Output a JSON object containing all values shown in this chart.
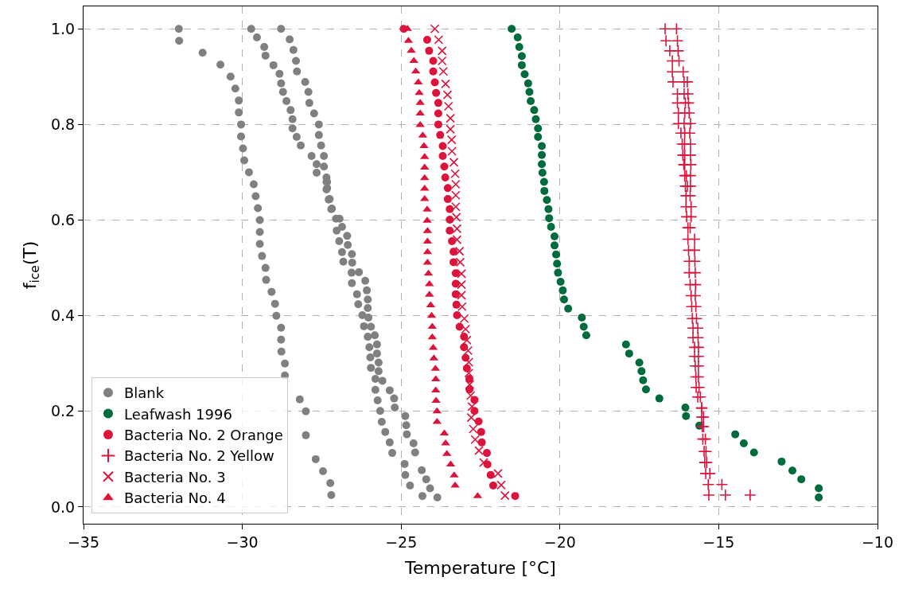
{
  "chart_data": {
    "type": "scatter",
    "xlabel": "Temperature [°C]",
    "ylabel": "f$_{ice}$(T)",
    "xlim": [
      -35,
      -10
    ],
    "ylim": [
      -0.035,
      1.047
    ],
    "xticks": [
      {
        "value": -35,
        "label": "−35"
      },
      {
        "value": -30,
        "label": "−30"
      },
      {
        "value": -25,
        "label": "−25"
      },
      {
        "value": -20,
        "label": "−20"
      },
      {
        "value": -15,
        "label": "−15"
      },
      {
        "value": -10,
        "label": "−10"
      }
    ],
    "yticks": [
      {
        "value": 0,
        "label": "0.0"
      },
      {
        "value": 0.2,
        "label": "0.2"
      },
      {
        "value": 0.4,
        "label": "0.4"
      },
      {
        "value": 0.6,
        "label": "0.6"
      },
      {
        "value": 0.8,
        "label": "0.8"
      },
      {
        "value": 1,
        "label": "1.0"
      }
    ],
    "grid": true,
    "legend": "bottom left",
    "series": [
      {
        "name": "Blank",
        "color": "#808080",
        "marker": "circle",
        "x": [
          -32.0,
          -31.99,
          -31.25,
          -30.69,
          -30.37,
          -30.22,
          -30.11,
          -30.11,
          -30.04,
          -30.04,
          -29.98,
          -29.94,
          -29.79,
          -29.64,
          -29.58,
          -29.51,
          -29.45,
          -29.45,
          -29.45,
          -29.38,
          -29.27,
          -29.25,
          -29.08,
          -28.97,
          -28.93,
          -28.78,
          -28.78,
          -28.77,
          -28.66,
          -28.66,
          -28.65,
          -28.19,
          -28.0,
          -28.0,
          -27.69,
          -27.46,
          -27.23,
          -27.2,
          -29.72,
          -29.54,
          -29.31,
          -29.27,
          -29.02,
          -28.83,
          -28.78,
          -28.72,
          -28.61,
          -28.48,
          -28.42,
          -28.42,
          -28.29,
          -28.16,
          -27.82,
          -27.66,
          -27.66,
          -27.35,
          -27.35,
          -27.28,
          -27.2,
          -27.05,
          -27.03,
          -26.95,
          -26.86,
          -26.82,
          -26.56,
          -26.55,
          -26.39,
          -26.35,
          -26.22,
          -26.17,
          -26.05,
          -26.0,
          -25.97,
          -25.95,
          -25.81,
          -25.81,
          -25.74,
          -25.66,
          -25.61,
          -25.5,
          -25.36,
          -25.28,
          -28.78,
          -28.51,
          -28.39,
          -28.31,
          -28.28,
          -28.02,
          -27.92,
          -27.89,
          -27.74,
          -27.59,
          -27.59,
          -27.52,
          -27.43,
          -27.43,
          -27.35,
          -27.33,
          -27.33,
          -27.25,
          -27.18,
          -26.94,
          -26.86,
          -26.7,
          -26.68,
          -26.55,
          -26.54,
          -26.33,
          -26.13,
          -26.08,
          -26.05,
          -26.05,
          -26.03,
          -25.95,
          -25.83,
          -25.76,
          -25.76,
          -25.71,
          -25.71,
          -25.59,
          -25.36,
          -25.22,
          -25.2,
          -24.87,
          -24.84,
          -24.82,
          -24.61,
          -24.56,
          -24.89,
          -24.87,
          -24.72,
          -24.35,
          -24.21,
          -24.09,
          -24.33,
          -23.86
        ],
        "values": [
          1.0,
          0.975,
          0.95,
          0.925,
          0.9,
          0.875,
          0.85,
          0.825,
          0.8,
          0.775,
          0.75,
          0.725,
          0.7,
          0.675,
          0.65,
          0.625,
          0.6,
          0.575,
          0.55,
          0.525,
          0.5,
          0.475,
          0.45,
          0.425,
          0.4,
          0.375,
          0.35,
          0.325,
          0.3,
          0.275,
          null,
          0.225,
          0.2,
          0.15,
          0.1,
          0.075,
          0.05,
          0.025,
          1.0,
          0.982,
          0.962,
          0.944,
          0.924,
          0.906,
          0.886,
          0.868,
          0.849,
          0.83,
          0.811,
          0.792,
          0.774,
          0.756,
          0.734,
          0.717,
          0.699,
          0.68,
          0.664,
          0.643,
          0.623,
          0.603,
          0.578,
          0.556,
          0.533,
          0.513,
          0.49,
          0.468,
          0.445,
          0.424,
          0.401,
          0.378,
          0.356,
          0.334,
          0.313,
          0.291,
          0.268,
          0.245,
          0.223,
          0.201,
          0.178,
          0.157,
          0.135,
          0.113,
          1.0,
          0.978,
          0.956,
          0.933,
          0.911,
          0.889,
          0.868,
          0.845,
          0.823,
          0.8,
          0.778,
          0.756,
          0.734,
          0.712,
          0.689,
          0.68,
          0.667,
          0.644,
          0.624,
          0.603,
          0.586,
          0.567,
          0.548,
          0.529,
          0.511,
          0.491,
          0.473,
          0.453,
          0.434,
          0.416,
          0.396,
          0.377,
          0.359,
          0.34,
          0.321,
          0.302,
          0.284,
          0.264,
          0.244,
          0.227,
          0.208,
          0.19,
          0.171,
          0.152,
          0.133,
          0.114,
          0.09,
          0.067,
          0.045,
          0.077,
          0.058,
          0.039,
          0.023,
          0.02
        ]
      },
      {
        "name": "Leafwash 1996",
        "color": "#006b3c",
        "marker": "circle",
        "x": [
          -21.52,
          -21.33,
          -21.28,
          -21.2,
          -21.2,
          -21.11,
          -21.0,
          -20.96,
          -20.92,
          -20.81,
          -20.76,
          -20.69,
          -20.69,
          -20.57,
          -20.57,
          -20.57,
          -20.55,
          -20.5,
          -20.49,
          -20.41,
          -20.36,
          -20.34,
          -20.28,
          -20.17,
          -20.17,
          -20.12,
          -20.09,
          -20.06,
          -19.98,
          -19.91,
          -19.87,
          -19.74,
          -19.31,
          -19.25,
          -19.17,
          -17.92,
          -17.82,
          -17.5,
          -17.43,
          -17.38,
          -17.29,
          -16.87,
          -16.05,
          -16.03,
          -15.61,
          -14.48,
          -14.21,
          -13.89,
          -13.02,
          -12.68,
          -12.4,
          -11.85,
          -11.85
        ],
        "values": [
          1.0,
          0.982,
          0.962,
          0.943,
          0.924,
          0.905,
          0.886,
          0.868,
          0.849,
          0.83,
          0.811,
          0.792,
          0.774,
          0.755,
          0.736,
          0.717,
          0.699,
          0.68,
          0.661,
          0.642,
          0.623,
          0.604,
          0.586,
          0.566,
          0.547,
          0.528,
          0.509,
          0.49,
          0.471,
          0.453,
          0.434,
          0.415,
          0.396,
          0.377,
          0.359,
          0.34,
          0.321,
          0.302,
          0.284,
          0.265,
          0.246,
          0.227,
          0.208,
          0.19,
          0.17,
          0.152,
          0.133,
          0.114,
          0.095,
          0.076,
          0.058,
          0.039,
          0.02
        ]
      },
      {
        "name": "Bacteria No. 2 Orange",
        "color": "#dc143c",
        "marker": "circle",
        "x": [
          -24.92,
          -24.18,
          -24.12,
          -23.99,
          -23.99,
          -23.94,
          -23.9,
          -23.83,
          -23.83,
          -23.83,
          -23.77,
          -23.69,
          -23.69,
          -23.64,
          -23.61,
          -23.53,
          -23.53,
          -23.47,
          -23.47,
          -23.47,
          -23.4,
          -23.35,
          -23.35,
          -23.28,
          -23.28,
          -23.28,
          -23.26,
          -23.24,
          -23.16,
          -23.02,
          -23.02,
          -22.97,
          -22.93,
          -22.85,
          -22.85,
          -22.69,
          -22.69,
          -22.56,
          -22.48,
          -22.46,
          -22.3,
          -22.28,
          -22.18,
          -22.1,
          -21.41
        ],
        "values": [
          1.0,
          0.977,
          0.954,
          0.933,
          0.911,
          0.888,
          0.866,
          0.845,
          0.823,
          0.8,
          0.778,
          0.755,
          0.734,
          0.712,
          0.689,
          0.667,
          0.644,
          0.623,
          0.601,
          0.578,
          0.556,
          0.534,
          0.512,
          0.489,
          0.467,
          0.445,
          0.423,
          0.401,
          0.377,
          0.356,
          0.334,
          0.312,
          0.29,
          0.268,
          0.246,
          0.224,
          0.201,
          0.179,
          0.157,
          0.135,
          0.113,
          0.089,
          0.067,
          0.045,
          0.023
        ]
      },
      {
        "name": "Bacteria No. 2 Yellow",
        "color": "#dc143c",
        "marker": "cross",
        "x": [
          -16.69,
          -16.33,
          -16.66,
          -16.3,
          -16.54,
          -16.28,
          -16.46,
          -16.25,
          -16.46,
          -16.12,
          -16.44,
          -16.09,
          -15.99,
          -16.3,
          -16.09,
          -15.97,
          -16.3,
          -16.05,
          -15.95,
          -16.27,
          -16.07,
          -15.93,
          -16.27,
          -16.09,
          -15.89,
          -16.19,
          -16.07,
          -15.91,
          -16.15,
          -16.08,
          -15.89,
          -16.13,
          -16.07,
          -15.89,
          -16.1,
          -16.07,
          -15.88,
          -16.07,
          -16.02,
          -15.89,
          -16.05,
          -15.99,
          -15.89,
          -16.03,
          -15.9,
          -16.03,
          -15.87,
          -16.01,
          -15.87,
          -15.97,
          -15.9,
          -15.97,
          -15.76,
          -15.95,
          -15.76,
          -15.93,
          -15.75,
          -15.93,
          -15.74,
          -15.9,
          -15.73,
          -15.87,
          -15.74,
          -15.85,
          -15.72,
          -15.83,
          -15.7,
          -15.81,
          -15.66,
          -15.81,
          -15.65,
          -15.76,
          -15.64,
          -15.76,
          -15.64,
          -15.74,
          -15.64,
          -15.72,
          -15.64,
          -15.71,
          -15.62,
          -15.66,
          -15.58,
          -15.54,
          -15.54,
          -15.54,
          -15.48,
          -15.52,
          -15.48,
          -15.5,
          -15.42,
          -15.46,
          -15.4,
          -15.44,
          -15.38,
          -15.41,
          -15.28,
          -15.33,
          -14.9,
          -15.31,
          -14.79,
          -14.01
        ],
        "values": [
          1.0,
          1.0,
          0.975,
          0.975,
          0.954,
          0.954,
          0.933,
          0.933,
          0.91,
          0.91,
          0.889,
          0.889,
          0.889,
          0.864,
          0.864,
          0.864,
          0.845,
          0.845,
          0.845,
          0.824,
          0.824,
          0.824,
          0.802,
          0.802,
          0.802,
          0.782,
          0.782,
          0.782,
          0.759,
          0.759,
          0.759,
          0.736,
          0.736,
          0.736,
          0.716,
          0.716,
          0.716,
          0.693,
          0.693,
          0.693,
          0.671,
          0.671,
          0.671,
          0.651,
          0.651,
          0.628,
          0.628,
          0.607,
          0.607,
          0.584,
          0.584,
          0.56,
          0.56,
          0.537,
          0.537,
          0.514,
          0.514,
          0.49,
          0.49,
          0.465,
          0.465,
          0.442,
          0.442,
          0.419,
          0.419,
          0.394,
          0.394,
          0.374,
          0.374,
          0.354,
          0.354,
          0.334,
          0.334,
          0.315,
          0.315,
          0.295,
          0.295,
          0.272,
          0.272,
          0.25,
          0.25,
          0.23,
          0.23,
          0.207,
          0.207,
          0.188,
          0.188,
          0.168,
          0.168,
          0.142,
          0.142,
          0.116,
          0.116,
          0.093,
          0.093,
          0.07,
          0.07,
          0.047,
          0.047,
          0.025,
          0.025,
          0.025
        ]
      },
      {
        "name": "Bacteria No. 3",
        "color": "#dc143c",
        "marker": "x",
        "x": [
          -23.94,
          -23.82,
          -23.71,
          -23.71,
          -23.67,
          -23.6,
          -23.54,
          -23.51,
          -23.45,
          -23.45,
          -23.41,
          -23.4,
          -23.34,
          -23.3,
          -23.28,
          -23.28,
          -23.28,
          -23.26,
          -23.24,
          -23.24,
          -23.16,
          -23.14,
          -23.1,
          -23.1,
          -23.1,
          -23.08,
          -23.01,
          -22.97,
          -22.93,
          -22.89,
          -22.87,
          -22.87,
          -22.84,
          -22.81,
          -22.77,
          -22.79,
          -22.73,
          -22.67,
          -22.55,
          -22.4,
          -21.95,
          -21.85,
          -21.73
        ],
        "values": [
          1.0,
          0.977,
          0.954,
          0.933,
          0.911,
          0.885,
          0.862,
          0.838,
          0.813,
          0.79,
          0.768,
          0.744,
          0.721,
          0.697,
          0.675,
          0.652,
          0.628,
          0.606,
          0.582,
          0.559,
          0.535,
          0.512,
          0.488,
          0.465,
          0.443,
          0.419,
          0.394,
          0.372,
          0.349,
          0.327,
          0.303,
          0.28,
          0.256,
          0.233,
          0.21,
          0.187,
          0.163,
          0.141,
          0.118,
          0.093,
          0.07,
          0.046,
          0.024
        ]
      },
      {
        "name": "Bacteria No. 4",
        "color": "#dc143c",
        "marker": "triangle",
        "x": [
          -24.8,
          -24.77,
          -24.68,
          -24.6,
          -24.54,
          -24.46,
          -24.43,
          -24.4,
          -24.4,
          -24.4,
          -24.32,
          -24.28,
          -24.26,
          -24.26,
          -24.26,
          -24.26,
          -24.26,
          -24.18,
          -24.18,
          -24.17,
          -24.17,
          -24.17,
          -24.17,
          -24.14,
          -24.11,
          -24.11,
          -24.07,
          -24.04,
          -24.02,
          -24.02,
          -23.99,
          -23.97,
          -23.92,
          -23.91,
          -23.91,
          -23.9,
          -23.87,
          -23.87,
          -23.64,
          -23.6,
          -23.56,
          -23.44,
          -23.33,
          -23.3,
          -22.59
        ],
        "values": [
          1.0,
          0.975,
          0.954,
          0.933,
          0.911,
          0.888,
          0.866,
          0.845,
          0.823,
          0.799,
          0.777,
          0.755,
          0.732,
          0.71,
          0.688,
          0.666,
          0.644,
          0.622,
          0.599,
          0.577,
          0.555,
          0.533,
          0.511,
          0.488,
          0.466,
          0.444,
          0.422,
          0.4,
          0.377,
          0.355,
          0.333,
          0.311,
          0.289,
          0.267,
          0.244,
          0.222,
          0.2,
          0.178,
          0.154,
          0.133,
          0.111,
          0.089,
          0.066,
          0.045,
          0.023
        ]
      }
    ]
  }
}
